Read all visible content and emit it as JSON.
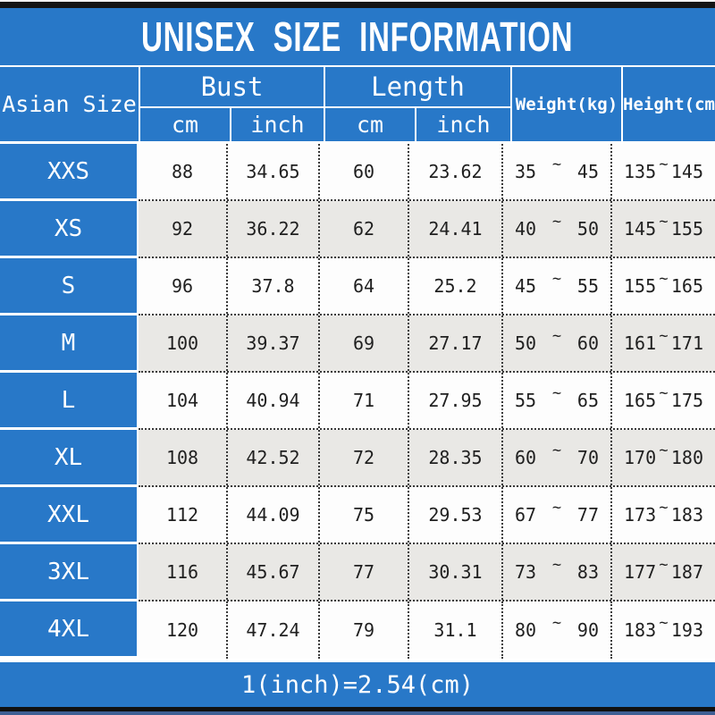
{
  "title": "UNISEX SIZE INFORMATION",
  "labels": {
    "size_column": "Asian Size",
    "bust_group": "Bust",
    "length_group": "Length",
    "weight_column": "Weight(kg)",
    "height_column": "Height(cm)",
    "unit_cm": "cm",
    "unit_inch": "inch",
    "tilde": "~"
  },
  "footer_note": "1(inch)=2.54(cm)",
  "colors": {
    "header_blue": "#2878c8",
    "row_alt_gray": "#e9e8e5",
    "grid_line": "#3a3a3a",
    "title_text": "#ffffff"
  },
  "chart_data": {
    "type": "table",
    "title": "UNISEX SIZE INFORMATION",
    "footnote": "1(inch)=2.54(cm)",
    "column_groups": [
      "Asian Size",
      "Bust (cm / inch)",
      "Length (cm / inch)",
      "Weight(kg)",
      "Height(cm)"
    ],
    "columns": [
      "Asian Size",
      "Bust cm",
      "Bust inch",
      "Length cm",
      "Length inch",
      "Weight(kg)",
      "Height(cm)"
    ],
    "rows": [
      {
        "size": "XXS",
        "bust_cm": "88",
        "bust_inch": "34.65",
        "length_cm": "60",
        "length_inch": "23.62",
        "weight": {
          "min": "35",
          "max": "45"
        },
        "height": {
          "min": "135",
          "max": "145"
        }
      },
      {
        "size": "XS",
        "bust_cm": "92",
        "bust_inch": "36.22",
        "length_cm": "62",
        "length_inch": "24.41",
        "weight": {
          "min": "40",
          "max": "50"
        },
        "height": {
          "min": "145",
          "max": "155"
        }
      },
      {
        "size": "S",
        "bust_cm": "96",
        "bust_inch": "37.8",
        "length_cm": "64",
        "length_inch": "25.2",
        "weight": {
          "min": "45",
          "max": "55"
        },
        "height": {
          "min": "155",
          "max": "165"
        }
      },
      {
        "size": "M",
        "bust_cm": "100",
        "bust_inch": "39.37",
        "length_cm": "69",
        "length_inch": "27.17",
        "weight": {
          "min": "50",
          "max": "60"
        },
        "height": {
          "min": "161",
          "max": "171"
        }
      },
      {
        "size": "L",
        "bust_cm": "104",
        "bust_inch": "40.94",
        "length_cm": "71",
        "length_inch": "27.95",
        "weight": {
          "min": "55",
          "max": "65"
        },
        "height": {
          "min": "165",
          "max": "175"
        }
      },
      {
        "size": "XL",
        "bust_cm": "108",
        "bust_inch": "42.52",
        "length_cm": "72",
        "length_inch": "28.35",
        "weight": {
          "min": "60",
          "max": "70"
        },
        "height": {
          "min": "170",
          "max": "180"
        }
      },
      {
        "size": "XXL",
        "bust_cm": "112",
        "bust_inch": "44.09",
        "length_cm": "75",
        "length_inch": "29.53",
        "weight": {
          "min": "67",
          "max": "77"
        },
        "height": {
          "min": "173",
          "max": "183"
        }
      },
      {
        "size": "3XL",
        "bust_cm": "116",
        "bust_inch": "45.67",
        "length_cm": "77",
        "length_inch": "30.31",
        "weight": {
          "min": "73",
          "max": "83"
        },
        "height": {
          "min": "177",
          "max": "187"
        }
      },
      {
        "size": "4XL",
        "bust_cm": "120",
        "bust_inch": "47.24",
        "length_cm": "79",
        "length_inch": "31.1",
        "weight": {
          "min": "80",
          "max": "90"
        },
        "height": {
          "min": "183",
          "max": "193"
        }
      }
    ],
    "conversion_note": "1 inch = 2.54 cm"
  }
}
